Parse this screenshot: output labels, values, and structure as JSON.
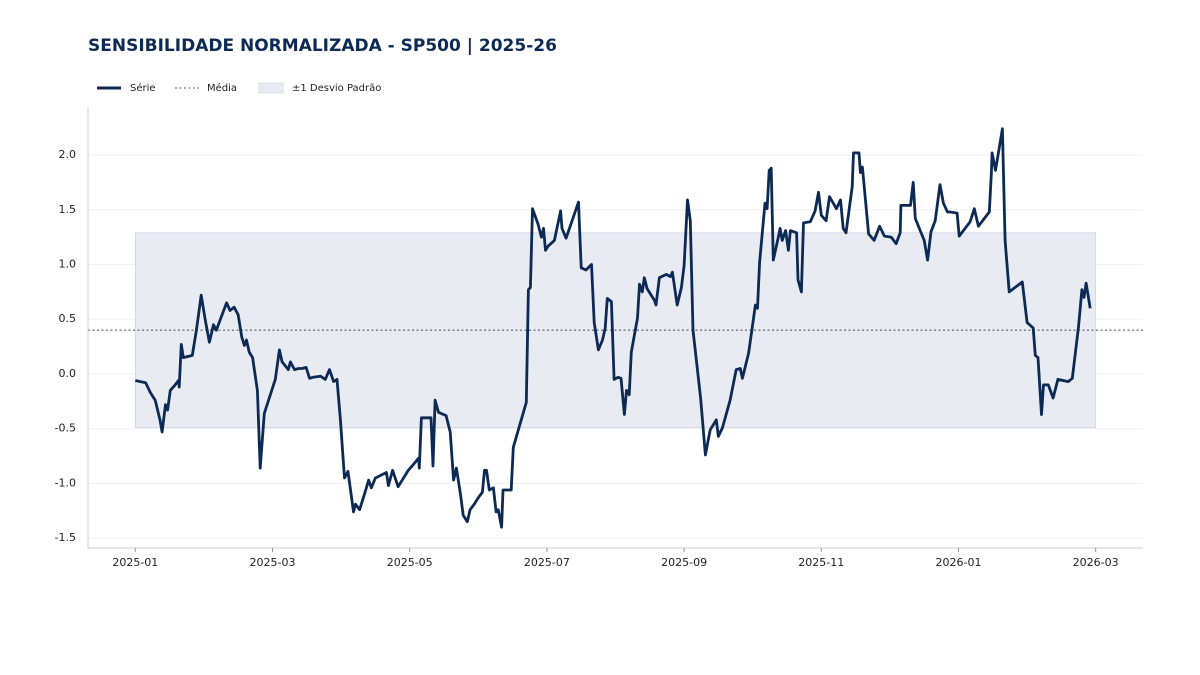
{
  "chart_data": {
    "type": "line",
    "title": "SENSIBILIDADE NORMALIZADA - SP500 | 2025-26",
    "legend": {
      "line": "Série",
      "mean": "Média",
      "band": "±1 Desvio Padrão"
    },
    "mean": 0.4,
    "band": [
      -0.49,
      1.29
    ],
    "band_x": [
      0,
      14
    ],
    "grid": true,
    "color": "#0d2a55",
    "band_color": "#e9ebf2",
    "mean_color": "#777",
    "xlim": [
      -0.69,
      14.69
    ],
    "ylim": [
      -1.59,
      2.43
    ],
    "xticks": [
      {
        "value": 0,
        "label": "2025-01"
      },
      {
        "value": 2,
        "label": "2025-03"
      },
      {
        "value": 4,
        "label": "2025-05"
      },
      {
        "value": 6,
        "label": "2025-07"
      },
      {
        "value": 8,
        "label": "2025-09"
      },
      {
        "value": 10,
        "label": "2025-11"
      },
      {
        "value": 12,
        "label": "2026-01"
      },
      {
        "value": 14,
        "label": "2026-03"
      }
    ],
    "yticks": [
      -1.5,
      {
        "value": -1,
        "label": "-1.0"
      },
      -0.5,
      {
        "value": 0,
        "label": "0.0"
      },
      0.5,
      {
        "value": 1,
        "label": "1.0"
      },
      1.5,
      {
        "value": 2,
        "label": "2.0"
      }
    ],
    "x": [
      0,
      0.15,
      0.22,
      0.29,
      0.36,
      0.39,
      0.44,
      0.47,
      0.51,
      0.58,
      0.63,
      0.64,
      0.67,
      0.7,
      0.83,
      0.89,
      0.96,
      1.02,
      1.08,
      1.14,
      1.18,
      1.33,
      1.38,
      1.44,
      1.5,
      1.55,
      1.59,
      1.62,
      1.66,
      1.71,
      1.78,
      1.82,
      1.88,
      2.04,
      2.1,
      2.14,
      2.23,
      2.26,
      2.32,
      2.38,
      2.43,
      2.49,
      2.54,
      2.59,
      2.7,
      2.77,
      2.83,
      2.89,
      2.94,
      2.99,
      3.05,
      3.1,
      3.18,
      3.21,
      3.27,
      3.34,
      3.4,
      3.44,
      3.5,
      3.66,
      3.69,
      3.75,
      3.83,
      3.89,
      3.98,
      4.05,
      4.13,
      4.14,
      4.17,
      4.27,
      4.31,
      4.34,
      4.37,
      4.42,
      4.53,
      4.59,
      4.64,
      4.68,
      4.74,
      4.78,
      4.84,
      4.88,
      4.94,
      5.0,
      5.06,
      5.09,
      5.12,
      5.16,
      5.22,
      5.26,
      5.29,
      5.34,
      5.36,
      5.48,
      5.51,
      5.7,
      5.73,
      5.76,
      5.79,
      5.87,
      5.92,
      5.95,
      5.98,
      6.02,
      6.11,
      6.2,
      6.22,
      6.28,
      6.46,
      6.5,
      6.57,
      6.65,
      6.69,
      6.75,
      6.81,
      6.85,
      6.88,
      6.94,
      6.98,
      7.04,
      7.08,
      7.13,
      7.16,
      7.2,
      7.23,
      7.32,
      7.35,
      7.39,
      7.42,
      7.46,
      7.57,
      7.59,
      7.64,
      7.74,
      7.8,
      7.83,
      7.9,
      7.96,
      8.0,
      8.05,
      8.09,
      8.13,
      8.24,
      8.31,
      8.38,
      8.47,
      8.5,
      8.56,
      8.67,
      8.76,
      8.82,
      8.85,
      8.94,
      9.04,
      9.07,
      9.1,
      9.18,
      9.21,
      9.24,
      9.27,
      9.3,
      9.37,
      9.4,
      9.43,
      9.48,
      9.52,
      9.55,
      9.64,
      9.66,
      9.71,
      9.74,
      9.84,
      9.91,
      9.96,
      10.0,
      10.07,
      10.12,
      10.22,
      10.28,
      10.32,
      10.36,
      10.45,
      10.47,
      10.55,
      10.57,
      10.6,
      10.69,
      10.77,
      10.85,
      10.92,
      11.02,
      11.09,
      11.15,
      11.16,
      11.3,
      11.34,
      11.37,
      11.5,
      11.55,
      11.6,
      11.66,
      11.73,
      11.78,
      11.84,
      11.88,
      11.98,
      12.01,
      12.17,
      12.23,
      12.29,
      12.45,
      12.48,
      12.49,
      12.54,
      12.64,
      12.68,
      12.74,
      12.93,
      13.0,
      13.09,
      13.12,
      13.16,
      13.21,
      13.24,
      13.31,
      13.38,
      13.45,
      13.6,
      13.66,
      13.75,
      13.8,
      13.83,
      13.86,
      13.92
    ],
    "values": [
      -0.06,
      -0.08,
      -0.17,
      -0.24,
      -0.42,
      -0.53,
      -0.28,
      -0.33,
      -0.15,
      -0.1,
      -0.06,
      -0.12,
      0.27,
      0.15,
      0.17,
      0.4,
      0.72,
      0.49,
      0.29,
      0.45,
      0.4,
      0.65,
      0.58,
      0.61,
      0.54,
      0.34,
      0.26,
      0.31,
      0.2,
      0.15,
      -0.15,
      -0.86,
      -0.36,
      -0.05,
      0.22,
      0.11,
      0.04,
      0.11,
      0.04,
      0.05,
      0.05,
      0.06,
      -0.04,
      -0.03,
      -0.02,
      -0.05,
      0.04,
      -0.07,
      -0.05,
      -0.42,
      -0.95,
      -0.89,
      -1.26,
      -1.19,
      -1.24,
      -1.1,
      -0.97,
      -1.04,
      -0.95,
      -0.9,
      -1.02,
      -0.88,
      -1.03,
      -0.97,
      -0.88,
      -0.83,
      -0.77,
      -0.86,
      -0.4,
      -0.4,
      -0.4,
      -0.84,
      -0.24,
      -0.35,
      -0.38,
      -0.53,
      -0.97,
      -0.86,
      -1.1,
      -1.29,
      -1.35,
      -1.24,
      -1.19,
      -1.13,
      -1.08,
      -0.88,
      -0.88,
      -1.06,
      -1.04,
      -1.26,
      -1.24,
      -1.4,
      -1.06,
      -1.06,
      -0.67,
      -0.26,
      0.77,
      0.79,
      1.51,
      1.37,
      1.25,
      1.33,
      1.13,
      1.17,
      1.22,
      1.49,
      1.33,
      1.24,
      1.57,
      0.97,
      0.95,
      1.0,
      0.47,
      0.22,
      0.31,
      0.42,
      0.69,
      0.66,
      -0.05,
      -0.03,
      -0.04,
      -0.37,
      -0.15,
      -0.19,
      0.2,
      0.51,
      0.82,
      0.75,
      0.88,
      0.78,
      0.67,
      0.63,
      0.88,
      0.91,
      0.89,
      0.93,
      0.63,
      0.79,
      0.99,
      1.59,
      1.4,
      0.4,
      -0.22,
      -0.74,
      -0.51,
      -0.42,
      -0.57,
      -0.49,
      -0.24,
      0.04,
      0.05,
      -0.04,
      0.19,
      0.63,
      0.6,
      1.02,
      1.56,
      1.51,
      1.86,
      1.88,
      1.04,
      1.24,
      1.33,
      1.22,
      1.31,
      1.13,
      1.31,
      1.29,
      0.86,
      0.75,
      1.38,
      1.39,
      1.49,
      1.66,
      1.45,
      1.4,
      1.62,
      1.51,
      1.59,
      1.33,
      1.29,
      1.71,
      2.02,
      2.02,
      1.84,
      1.89,
      1.28,
      1.22,
      1.35,
      1.26,
      1.25,
      1.19,
      1.29,
      1.54,
      1.54,
      1.75,
      1.42,
      1.22,
      1.04,
      1.3,
      1.4,
      1.73,
      1.56,
      1.48,
      1.48,
      1.47,
      1.26,
      1.39,
      1.51,
      1.35,
      1.48,
      1.84,
      2.02,
      1.86,
      2.24,
      1.22,
      0.75,
      0.84,
      0.47,
      0.42,
      0.17,
      0.15,
      -0.37,
      -0.1,
      -0.1,
      -0.22,
      -0.05,
      -0.07,
      -0.04,
      0.43,
      0.77,
      0.7,
      0.83,
      0.6
    ]
  }
}
